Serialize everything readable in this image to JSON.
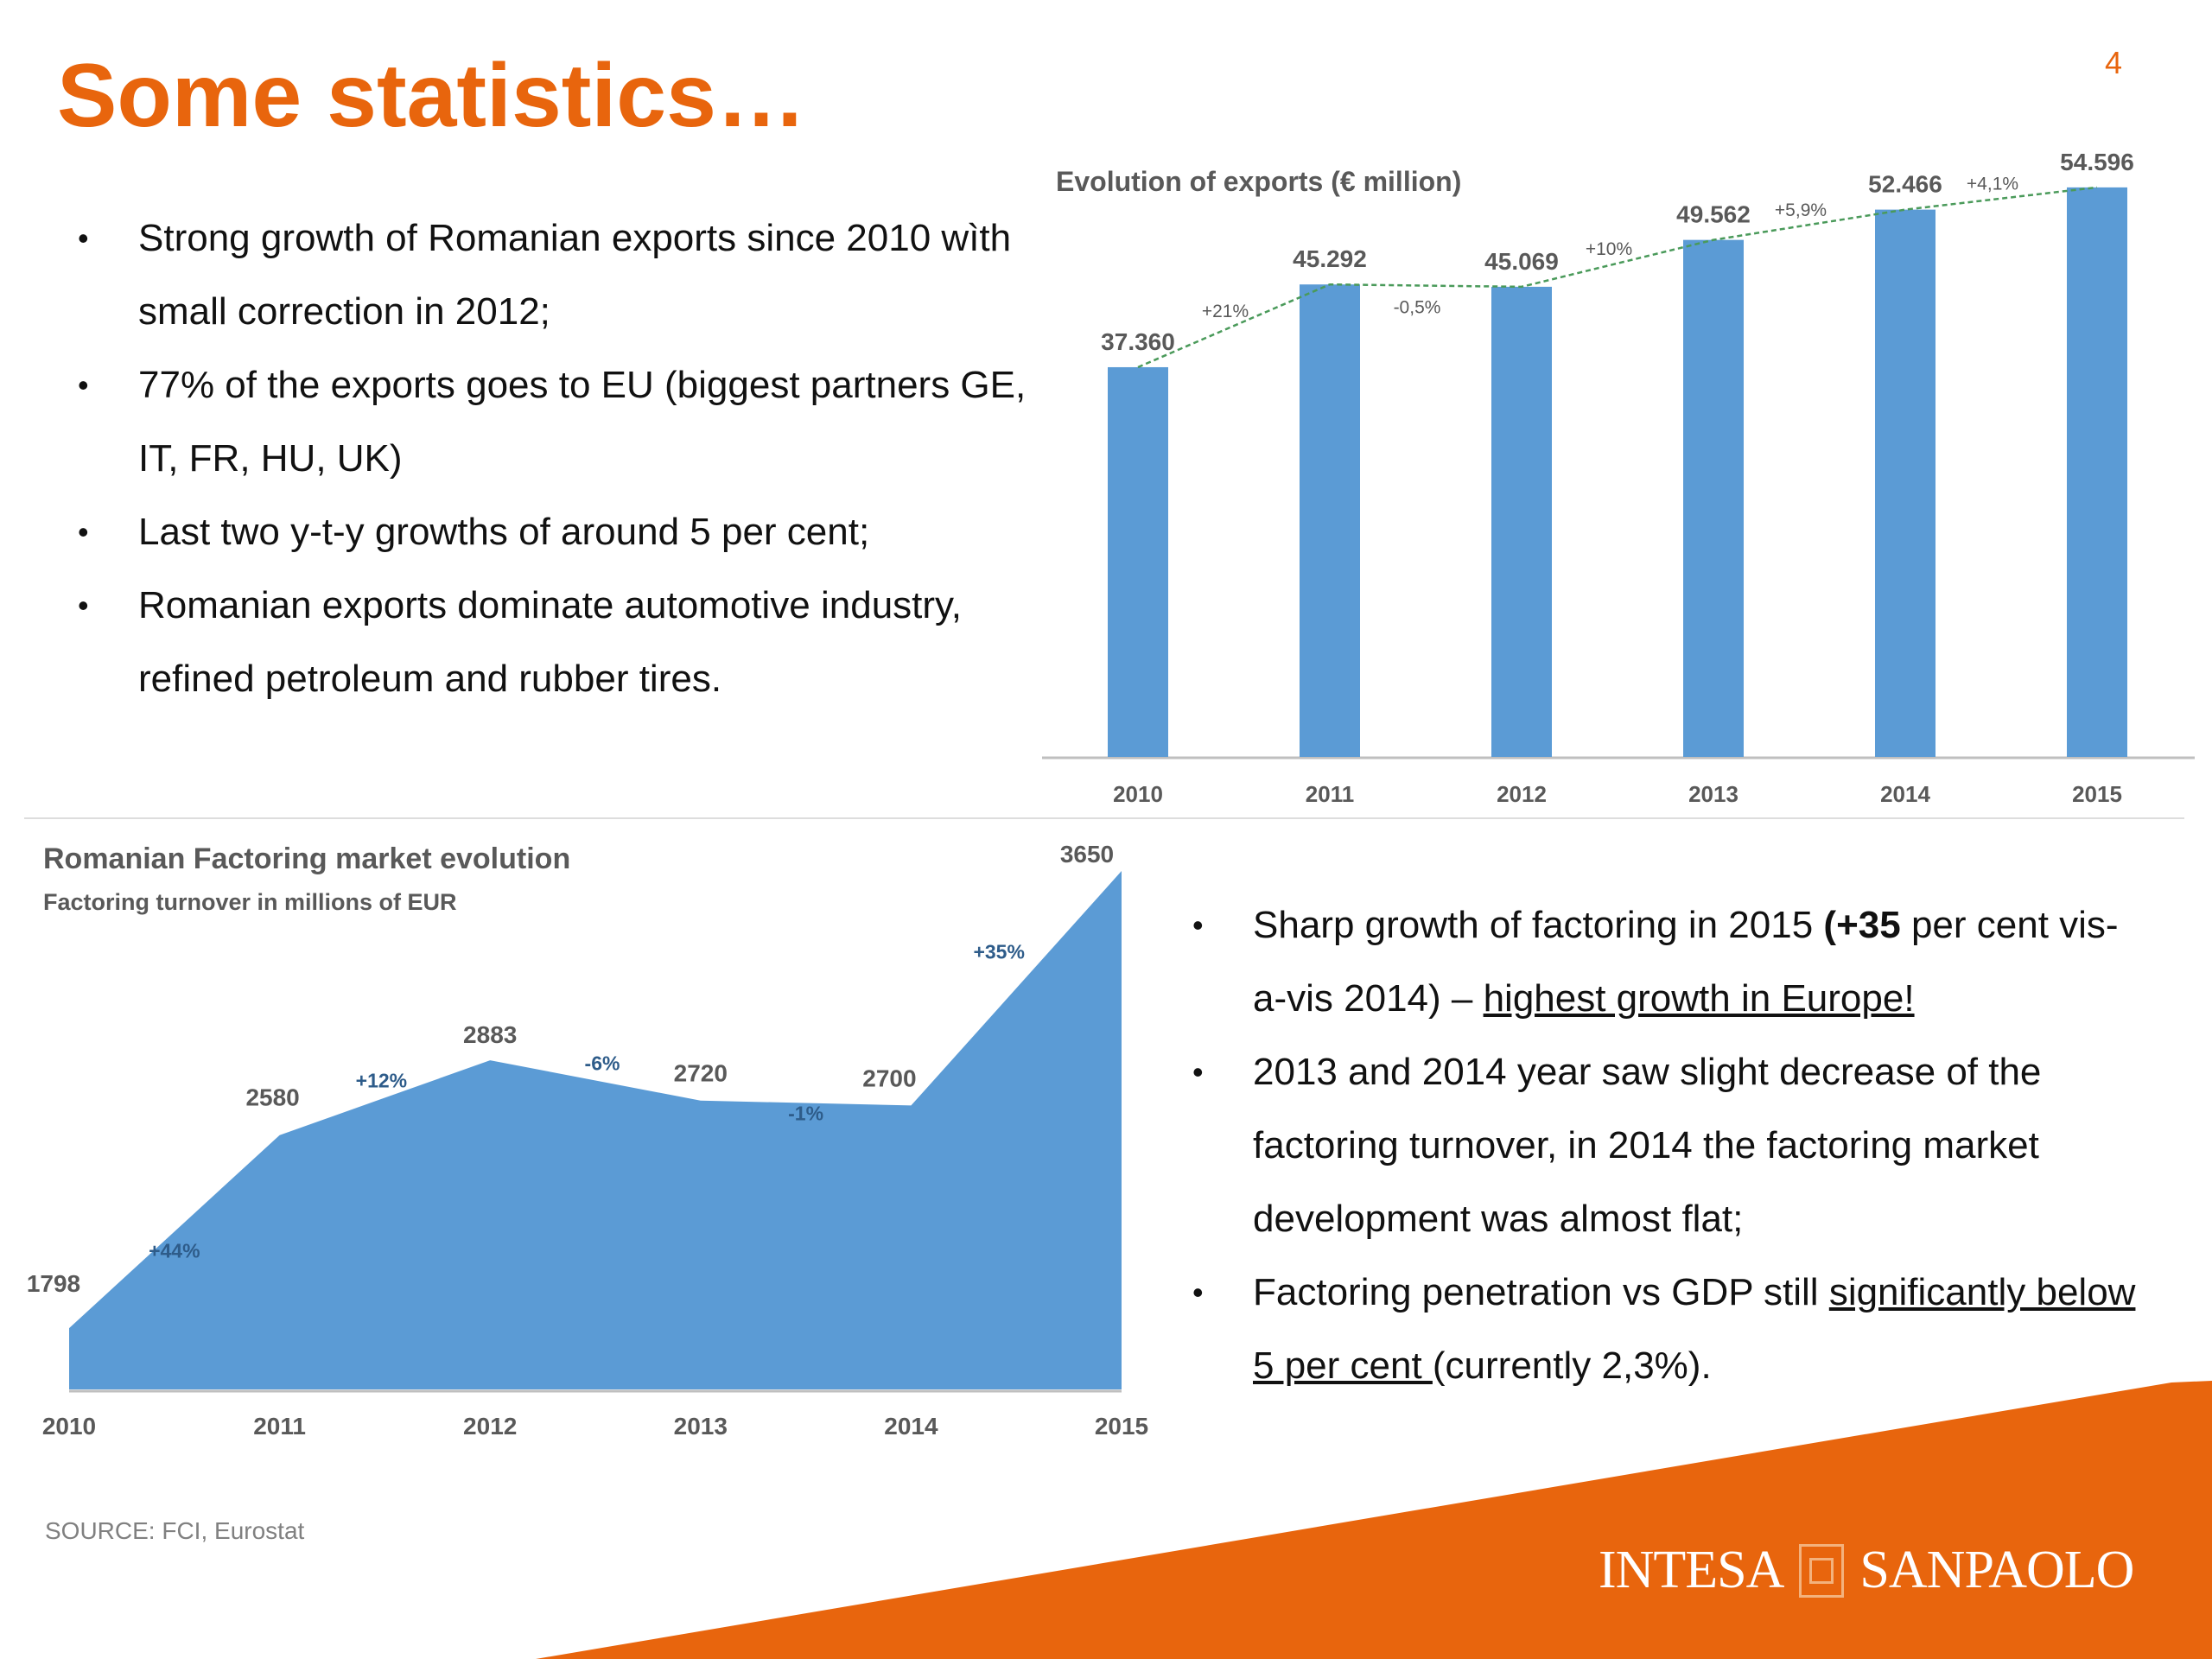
{
  "slide": {
    "title": "Some statistics…",
    "page_number": "4",
    "source": "SOURCE: FCI, Eurostat",
    "logo_left": "INTESA",
    "logo_right": "SANPAOLO",
    "accent_color": "#e8650d"
  },
  "bullets_top": [
    {
      "segments": [
        {
          "text": "Strong growth of Romanian exports since 2010 wìth small correction in 2012;"
        }
      ]
    },
    {
      "segments": [
        {
          "text": "77% of the exports goes to EU (biggest partners GE, IT, FR, HU, UK)"
        }
      ]
    },
    {
      "segments": [
        {
          "text": "Last two y-t-y growths of around 5 per cent;"
        }
      ]
    },
    {
      "segments": [
        {
          "text": "Romanian exports dominate automotive industry, refined petroleum and rubber tires."
        }
      ]
    }
  ],
  "bullets_bottom": [
    {
      "segments": [
        {
          "text": "Sharp growth of factoring in 2015 "
        },
        {
          "text": "(+35",
          "bold": true
        },
        {
          "text": " per cent vis-a-vis 2014) – "
        },
        {
          "text": "highest growth in Europe!",
          "underline": true
        }
      ]
    },
    {
      "segments": [
        {
          "text": "2013 and 2014 year saw slight decrease of the factoring turnover, in 2014 the factoring market development was almost flat;"
        }
      ]
    },
    {
      "segments": [
        {
          "text": "Factoring penetration vs GDP still "
        },
        {
          "text": "significantly below 5 per cent ",
          "underline": true
        },
        {
          "text": "(currently 2,3%)."
        }
      ]
    }
  ],
  "chart_data": [
    {
      "type": "bar",
      "title": "Evolution of exports (€ million)",
      "categories": [
        "2010",
        "2011",
        "2012",
        "2013",
        "2014",
        "2015"
      ],
      "values": [
        37360,
        45292,
        45069,
        49562,
        52466,
        54596
      ],
      "value_labels": [
        "37.360",
        "45.292",
        "45.069",
        "49.562",
        "52.466",
        "54.596"
      ],
      "growth_labels": [
        "+21%",
        "-0,5%",
        "+10%",
        "+5,9%",
        "+4,1%"
      ],
      "ylim": [
        0,
        55000
      ],
      "bar_color": "#5b9bd5",
      "trend_line_color": "#4a9a5a",
      "grid": false
    },
    {
      "type": "area",
      "title": "Romanian Factoring market evolution",
      "subtitle": "Factoring turnover in millions of EUR",
      "categories": [
        "2010",
        "2011",
        "2012",
        "2013",
        "2014",
        "2015"
      ],
      "values": [
        1798,
        2580,
        2883,
        2720,
        2700,
        3650
      ],
      "growth_labels": [
        "+44%",
        "+12%",
        "-6%",
        "-1%",
        "+35%"
      ],
      "ylim": [
        1550,
        3650
      ],
      "fill_color": "#5b9bd5",
      "growth_label_color": "#2e5c8a",
      "grid": false
    }
  ]
}
